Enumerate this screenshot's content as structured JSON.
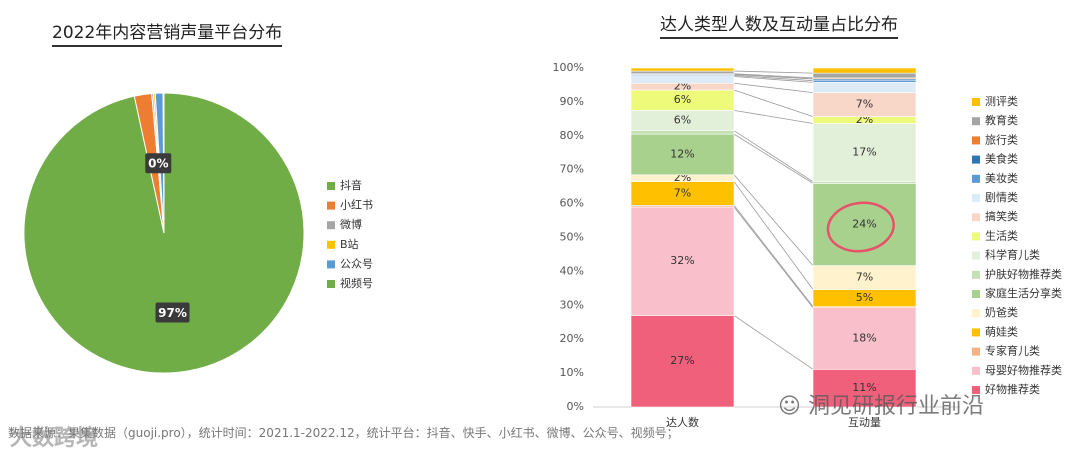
{
  "chart_data": [
    {
      "type": "pie",
      "title": "2022年内容营销声量平台分布",
      "slices": [
        {
          "name": "抖音",
          "value": 96.6,
          "color": "#70AD47",
          "label": "97%"
        },
        {
          "name": "小红书",
          "value": 2.0,
          "color": "#ED7D31",
          "label": ""
        },
        {
          "name": "微博",
          "value": 0.2,
          "color": "#A5A5A5",
          "label": "0%"
        },
        {
          "name": "B站",
          "value": 0.2,
          "color": "#FFC000",
          "label": ""
        },
        {
          "name": "公众号",
          "value": 0.9,
          "color": "#5B9BD5",
          "label": ""
        },
        {
          "name": "视频号",
          "value": 0.1,
          "color": "#70AD47",
          "label": ""
        }
      ],
      "legend_position": "right"
    },
    {
      "type": "bar",
      "stacked": true,
      "title": "达人类型人数及互动量占比分布",
      "categories": [
        "达人数",
        "互动量"
      ],
      "ylim": [
        0,
        100
      ],
      "yticks": [
        "0%",
        "10%",
        "20%",
        "30%",
        "40%",
        "50%",
        "60%",
        "70%",
        "80%",
        "90%",
        "100%"
      ],
      "legend_position": "right",
      "series": [
        {
          "name": "好物推荐类",
          "color": "#F0607A",
          "values": [
            27,
            11
          ],
          "labels": [
            "27%",
            "11%"
          ]
        },
        {
          "name": "母婴好物推荐类",
          "color": "#F9C0CB",
          "values": [
            32,
            18
          ],
          "labels": [
            "32%",
            "18%"
          ]
        },
        {
          "name": "专家育儿类",
          "color": "#F4B183",
          "values": [
            0.5,
            0.3
          ],
          "labels": [
            "",
            ""
          ]
        },
        {
          "name": "萌娃类",
          "color": "#FFC000",
          "values": [
            7,
            5
          ],
          "labels": [
            "7%",
            "5%"
          ]
        },
        {
          "name": "奶爸类",
          "color": "#FFF2CC",
          "values": [
            2,
            7
          ],
          "labels": [
            "2%",
            "7%"
          ]
        },
        {
          "name": "家庭生活分享类",
          "color": "#A9D18E",
          "values": [
            12,
            24
          ],
          "labels": [
            "12%",
            "24%"
          ]
        },
        {
          "name": "护肤好物推荐类",
          "color": "#C5E0B4",
          "values": [
            1,
            0.5
          ],
          "labels": [
            "",
            ""
          ]
        },
        {
          "name": "科学育儿类",
          "color": "#E2F0D9",
          "values": [
            6,
            17
          ],
          "labels": [
            "6%",
            "17%"
          ]
        },
        {
          "name": "生活类",
          "color": "#EEFA7A",
          "values": [
            6,
            2
          ],
          "labels": [
            "6%",
            "2%"
          ]
        },
        {
          "name": "搞笑类",
          "color": "#F8D7C8",
          "values": [
            2,
            7
          ],
          "labels": [
            "2%",
            "7%"
          ]
        },
        {
          "name": "剧情类",
          "color": "#DDEBF7",
          "values": [
            2,
            3
          ],
          "labels": [
            "",
            ""
          ]
        },
        {
          "name": "美妆类",
          "color": "#5B9BD5",
          "values": [
            0.3,
            0.5
          ],
          "labels": [
            "",
            ""
          ]
        },
        {
          "name": "美食类",
          "color": "#2E75B6",
          "values": [
            0.3,
            0.5
          ],
          "labels": [
            "",
            ""
          ]
        },
        {
          "name": "旅行类",
          "color": "#ED7D31",
          "values": [
            0.2,
            0.3
          ],
          "labels": [
            "",
            ""
          ]
        },
        {
          "name": "教育类",
          "color": "#A5A5A5",
          "values": [
            0.8,
            1.4
          ],
          "labels": [
            "",
            ""
          ]
        },
        {
          "name": "测评类",
          "color": "#FFC000",
          "values": [
            0.9,
            1.5
          ],
          "labels": [
            "",
            ""
          ]
        }
      ],
      "annotation": "24% circled in red"
    }
  ],
  "footer": {
    "source": "数据来源：果集数据（guoji.pro），统计时间：2021.1-2022.12，统计平台：抖音、快手、小红书、微博、公众号、视频号；",
    "watermark_left": "大数跨境",
    "watermark_right": "洞见研报行业前沿"
  }
}
